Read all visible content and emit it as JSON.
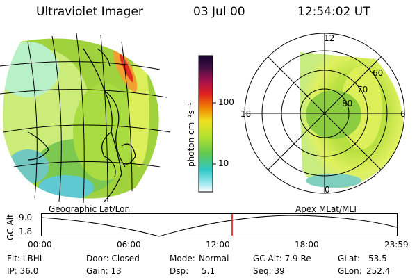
{
  "header": {
    "title": "Ultraviolet Imager",
    "date": "03 Jul 00",
    "time": "12:54:02 UT"
  },
  "colorbar": {
    "label": "photon cm⁻²s⁻¹",
    "ticks": [
      "100",
      "10"
    ]
  },
  "polar": {
    "lat_labels": [
      "60",
      "70",
      "80"
    ],
    "mlt_labels": [
      "12",
      "18",
      "6",
      "0"
    ]
  },
  "panel_labels": {
    "left": "Geographic Lat/Lon",
    "right": "Apex MLat/MLT"
  },
  "altitude_plot": {
    "ylabel": "GC Alt",
    "yticks": [
      "9.0",
      "1.8"
    ],
    "xticks": [
      "00:00",
      "06:00",
      "12:00",
      "18:00",
      "23:59"
    ],
    "current_time_marker": "12:54"
  },
  "info": {
    "row1": {
      "filter": "Flt: LBHL",
      "door": "Door: Closed",
      "mode_label": "Mode:",
      "mode_value": "Normal",
      "gc_alt": "GC Alt: 7.9 Re",
      "glat_label": "GLat:",
      "glat_value": "53.5"
    },
    "row2": {
      "ip": "IP: 36.0",
      "gain": "Gain: 13",
      "dsp_label": "Dsp:",
      "dsp_value": "5.1",
      "seq": "Seq: 39",
      "glon_label": "GLon:",
      "glon_value": "252.4"
    }
  },
  "colors": {
    "marker": "#e00000",
    "land_outline": "#000000"
  }
}
